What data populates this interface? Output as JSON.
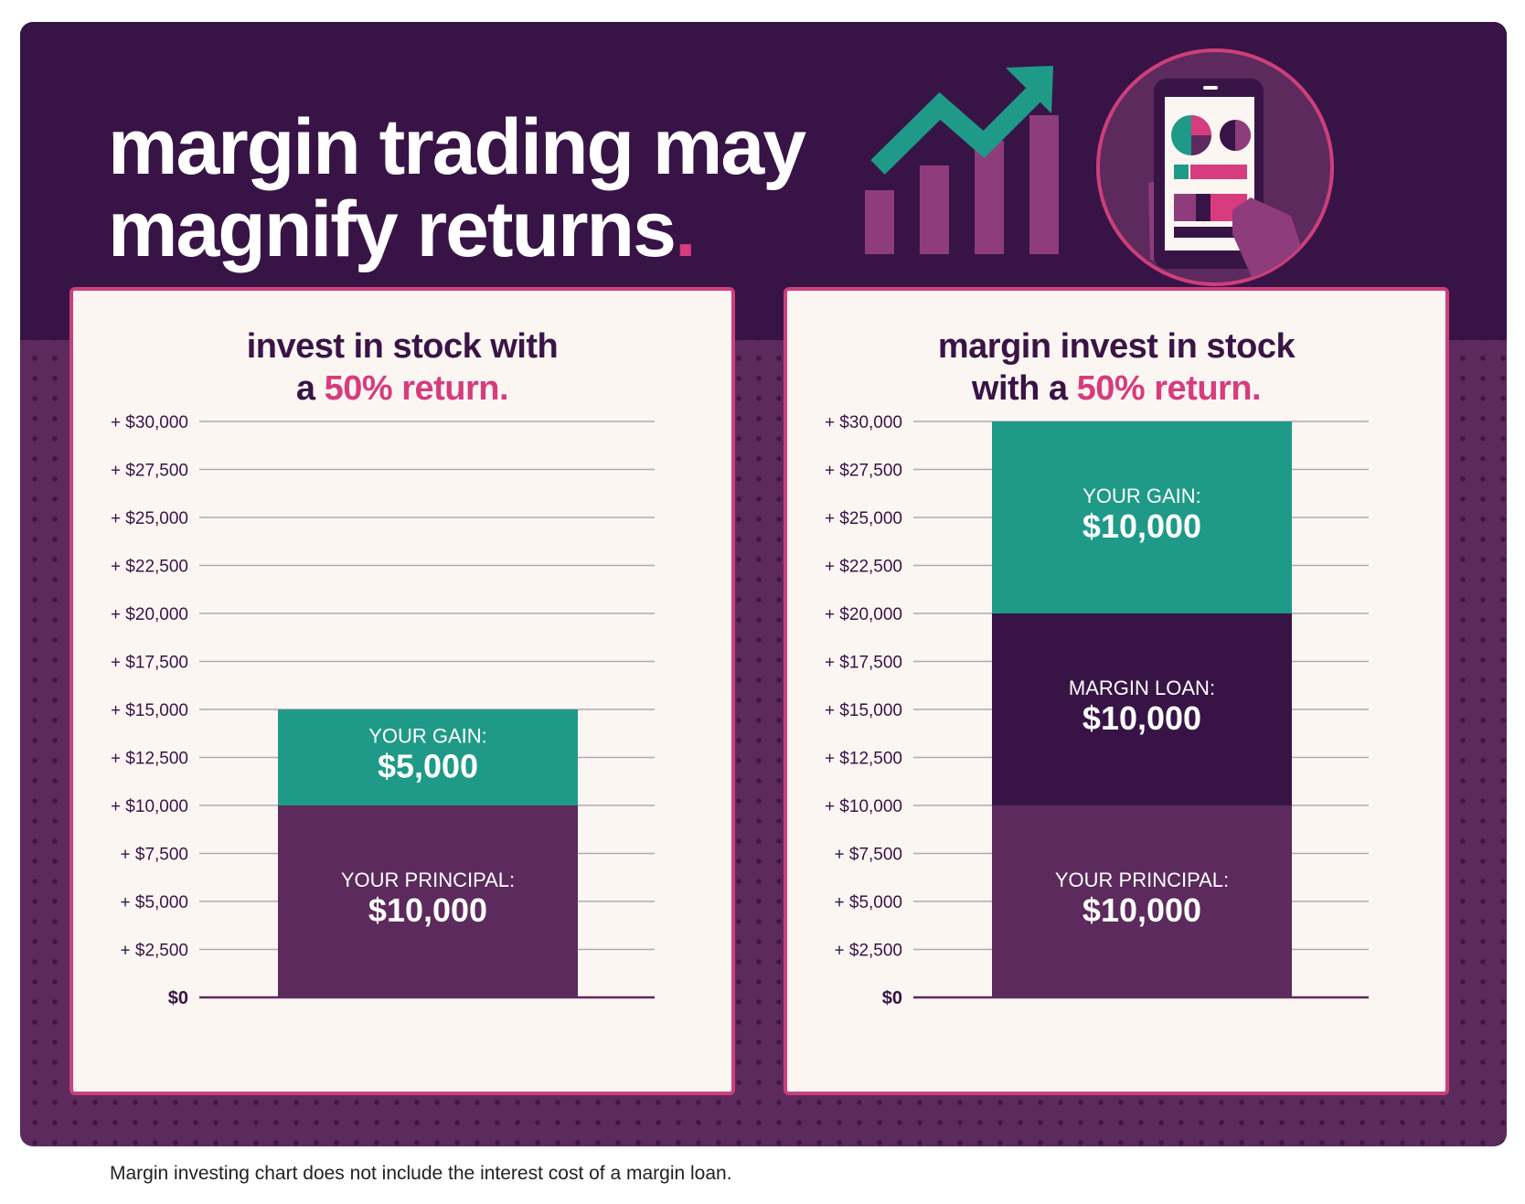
{
  "header": {
    "title_line1": "margin trading may",
    "title_line2": "magnify returns",
    "title_punct": "."
  },
  "icons": {
    "growth": "growth-chart-arrow-icon",
    "phone": "phone-in-hand-icon"
  },
  "colors": {
    "dark_purple": "#381446",
    "purple": "#5c2a5c",
    "teal": "#1f9a88",
    "pink": "#d63c7e",
    "cream": "#fcf6f2"
  },
  "panels": [
    {
      "title_line1": "invest in stock with",
      "title_line2_pre": "a ",
      "title_highlight": "50% return."
    },
    {
      "title_line1": "margin invest in stock",
      "title_line2_pre": "with a ",
      "title_highlight": "50% return."
    }
  ],
  "chart_data": [
    {
      "type": "bar",
      "stacked": true,
      "ylim": [
        0,
        30000
      ],
      "y_ticks": [
        0,
        2500,
        5000,
        7500,
        10000,
        12500,
        15000,
        17500,
        20000,
        22500,
        25000,
        27500,
        30000
      ],
      "y_tick_labels": [
        "$0",
        "+ $2,500",
        "+ $5,000",
        "+ $7,500",
        "+ $10,000",
        "+ $12,500",
        "+ $15,000",
        "+ $17,500",
        "+ $20,000",
        "+ $22,500",
        "+ $25,000",
        "+ $27,500",
        "+ $30,000"
      ],
      "grid": true,
      "segments": [
        {
          "name": "YOUR PRINCIPAL:",
          "label": "$10,000",
          "value": 10000,
          "color": "#5c2a5c"
        },
        {
          "name": "YOUR GAIN:",
          "label": "$5,000",
          "value": 5000,
          "color": "#1f9a88"
        }
      ]
    },
    {
      "type": "bar",
      "stacked": true,
      "ylim": [
        0,
        30000
      ],
      "y_ticks": [
        0,
        2500,
        5000,
        7500,
        10000,
        12500,
        15000,
        17500,
        20000,
        22500,
        25000,
        27500,
        30000
      ],
      "y_tick_labels": [
        "$0",
        "+ $2,500",
        "+ $5,000",
        "+ $7,500",
        "+ $10,000",
        "+ $12,500",
        "+ $15,000",
        "+ $17,500",
        "+ $20,000",
        "+ $22,500",
        "+ $25,000",
        "+ $27,500",
        "+ $30,000"
      ],
      "grid": true,
      "segments": [
        {
          "name": "YOUR PRINCIPAL:",
          "label": "$10,000",
          "value": 10000,
          "color": "#5c2a5c"
        },
        {
          "name": "MARGIN LOAN:",
          "label": "$10,000",
          "value": 10000,
          "color": "#381446"
        },
        {
          "name": "YOUR GAIN:",
          "label": "$10,000",
          "value": 10000,
          "color": "#1f9a88"
        }
      ]
    }
  ],
  "footnote": "Margin investing chart does not include the interest cost of a margin loan."
}
